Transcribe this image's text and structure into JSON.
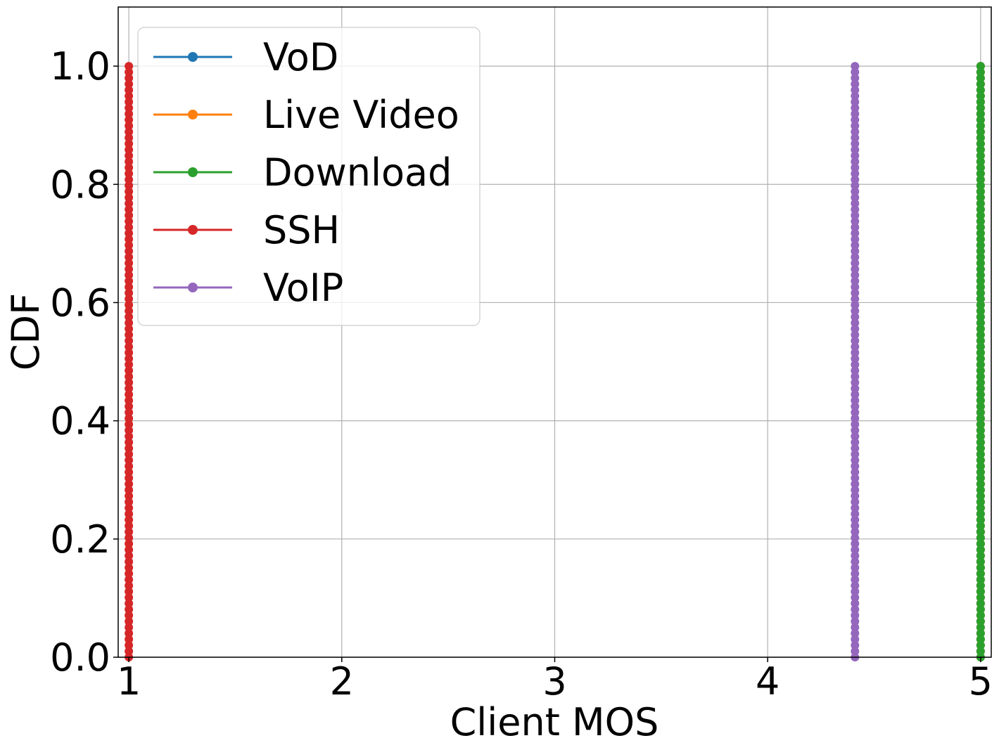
{
  "chart_data": {
    "type": "line",
    "title": "",
    "xlabel": "Client MOS",
    "ylabel": "CDF",
    "xlim": [
      0.95,
      5.05
    ],
    "ylim": [
      0.0,
      1.1
    ],
    "x_ticks": [
      "1",
      "2",
      "3",
      "4",
      "5"
    ],
    "y_ticks": [
      "0.0",
      "0.2",
      "0.4",
      "0.6",
      "0.8",
      "1.0"
    ],
    "grid": true,
    "legend_position": "top-left",
    "series": [
      {
        "name": "VoD",
        "color": "#1f77b4",
        "x_values": [
          5.0,
          5.0
        ],
        "cdf": [
          0.0,
          1.0
        ],
        "points": 100
      },
      {
        "name": "Live Video",
        "color": "#ff7f0e",
        "x_values": [
          5.0,
          5.0
        ],
        "cdf": [
          0.0,
          1.0
        ],
        "points": 100
      },
      {
        "name": "Download",
        "color": "#2ca02c",
        "x_values": [
          5.0,
          5.0
        ],
        "cdf": [
          0.0,
          1.0
        ],
        "points": 100
      },
      {
        "name": "SSH",
        "color": "#d62728",
        "x_values": [
          1.0,
          1.0
        ],
        "cdf": [
          0.0,
          1.0
        ],
        "points": 100
      },
      {
        "name": "VoIP",
        "color": "#9467bd",
        "x_values": [
          4.41,
          4.41
        ],
        "cdf": [
          0.0,
          1.0
        ],
        "points": 100
      }
    ]
  }
}
